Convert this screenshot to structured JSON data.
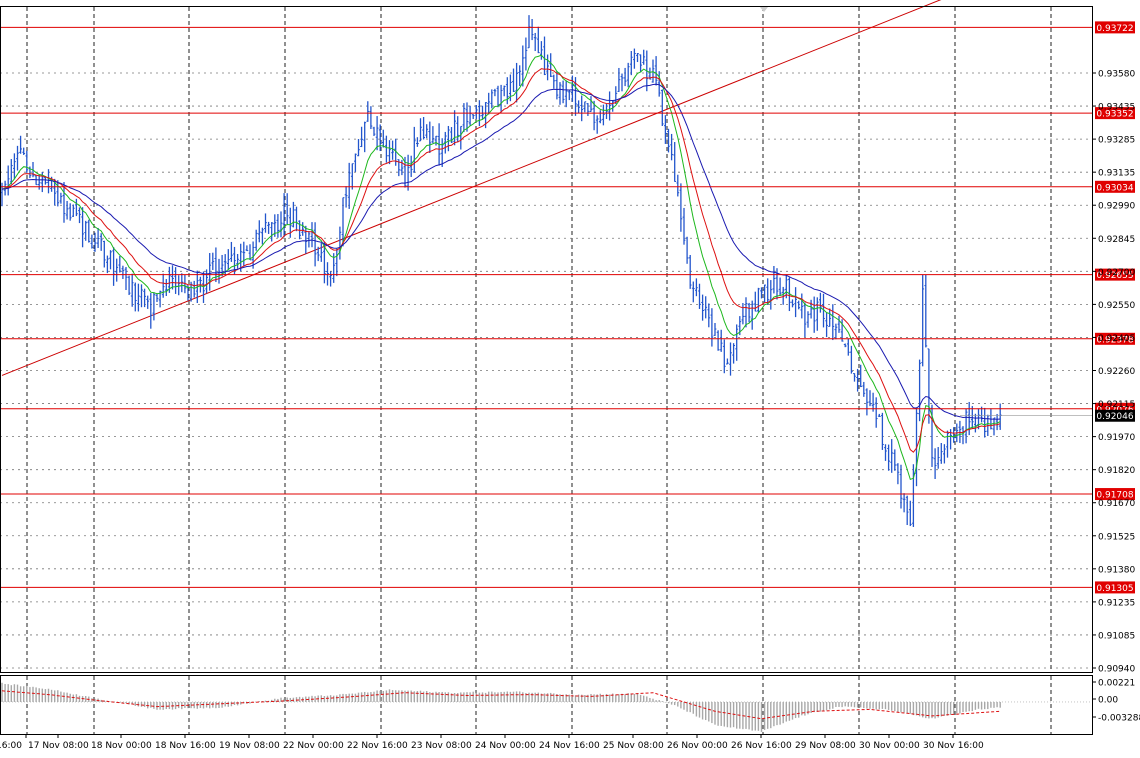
{
  "chart_data": [
    {
      "type": "candlestick",
      "price_range": [
        0.9094,
        0.9381
      ],
      "x_labels": [
        "16:00",
        "17 Nov 08:00",
        "18 Nov 00:00",
        "18 Nov 16:00",
        "19 Nov 08:00",
        "22 Nov 00:00",
        "22 Nov 16:00",
        "23 Nov 08:00",
        "24 Nov 00:00",
        "24 Nov 16:00",
        "25 Nov 08:00",
        "26 Nov 00:00",
        "26 Nov 16:00",
        "29 Nov 08:00",
        "30 Nov 00:00",
        "30 Nov 16:00"
      ],
      "y_ticks": [
        "0.93580",
        "0.93435",
        "0.93285",
        "0.93135",
        "0.92990",
        "0.92845",
        "0.92700",
        "0.92550",
        "0.92405",
        "0.92260",
        "0.92115",
        "0.91970",
        "0.91820",
        "0.91670",
        "0.91525",
        "0.91380",
        "0.91235",
        "0.91085",
        "0.90940"
      ],
      "levels": [
        "0.93722",
        "0.93352",
        "0.93034",
        "0.92655",
        "0.92378",
        "0.92076",
        "0.91708",
        "0.91305"
      ],
      "current_price": "0.92046",
      "trendline": {
        "start": {
          "bar": 0,
          "price": 0.9222
        },
        "end": {
          "bar": 310,
          "price": 0.9388
        }
      },
      "close_anchors": [
        [
          0,
          0.93
        ],
        [
          5,
          0.932
        ],
        [
          12,
          0.9305
        ],
        [
          20,
          0.9295
        ],
        [
          30,
          0.928
        ],
        [
          40,
          0.9262
        ],
        [
          48,
          0.9252
        ],
        [
          55,
          0.9262
        ],
        [
          62,
          0.9258
        ],
        [
          70,
          0.927
        ],
        [
          78,
          0.9272
        ],
        [
          85,
          0.9285
        ],
        [
          92,
          0.9292
        ],
        [
          100,
          0.928
        ],
        [
          106,
          0.9265
        ],
        [
          112,
          0.931
        ],
        [
          118,
          0.9332
        ],
        [
          125,
          0.9318
        ],
        [
          130,
          0.9305
        ],
        [
          135,
          0.9328
        ],
        [
          142,
          0.932
        ],
        [
          150,
          0.9335
        ],
        [
          158,
          0.934
        ],
        [
          165,
          0.9345
        ],
        [
          170,
          0.937
        ],
        [
          175,
          0.9355
        ],
        [
          180,
          0.9345
        ],
        [
          186,
          0.9342
        ],
        [
          192,
          0.9332
        ],
        [
          198,
          0.9345
        ],
        [
          204,
          0.936
        ],
        [
          210,
          0.935
        ],
        [
          214,
          0.933
        ],
        [
          218,
          0.93
        ],
        [
          222,
          0.9265
        ],
        [
          228,
          0.9245
        ],
        [
          234,
          0.9225
        ],
        [
          240,
          0.925
        ],
        [
          246,
          0.9258
        ],
        [
          252,
          0.9262
        ],
        [
          258,
          0.9248
        ],
        [
          264,
          0.925
        ],
        [
          270,
          0.9238
        ],
        [
          276,
          0.9222
        ],
        [
          282,
          0.9205
        ],
        [
          288,
          0.918
        ],
        [
          293,
          0.916
        ],
        [
          297,
          0.9255
        ],
        [
          300,
          0.9185
        ],
        [
          306,
          0.9195
        ],
        [
          312,
          0.9205
        ],
        [
          320,
          0.92
        ],
        [
          322,
          0.9204
        ]
      ],
      "indicator": {
        "type": "macd-histogram",
        "y_ticks": [
          "0.00221",
          "0.00",
          "-0.003288"
        ],
        "range": [
          -0.00345,
          0.0028
        ],
        "signal_anchors": [
          [
            0,
            0.0012
          ],
          [
            15,
            0.0008
          ],
          [
            30,
            0.0002
          ],
          [
            50,
            -0.0005
          ],
          [
            70,
            -0.0002
          ],
          [
            90,
            0.0001
          ],
          [
            110,
            0.0005
          ],
          [
            130,
            0.001
          ],
          [
            150,
            0.0007
          ],
          [
            170,
            0.0008
          ],
          [
            190,
            0.0006
          ],
          [
            210,
            0.001
          ],
          [
            230,
            -0.001
          ],
          [
            245,
            -0.0018
          ],
          [
            262,
            -0.001
          ],
          [
            280,
            -0.0008
          ],
          [
            300,
            -0.0015
          ],
          [
            322,
            -0.001
          ]
        ],
        "histogram_anchors": [
          [
            0,
            0.002
          ],
          [
            15,
            0.0014
          ],
          [
            30,
            0.0004
          ],
          [
            50,
            -0.0008
          ],
          [
            70,
            -0.0006
          ],
          [
            90,
            0.0004
          ],
          [
            110,
            0.0008
          ],
          [
            125,
            0.0013
          ],
          [
            145,
            0.001
          ],
          [
            165,
            0.0011
          ],
          [
            185,
            0.0008
          ],
          [
            205,
            0.0009
          ],
          [
            218,
            -0.0005
          ],
          [
            230,
            -0.0025
          ],
          [
            245,
            -0.0032
          ],
          [
            258,
            -0.0015
          ],
          [
            270,
            -0.0005
          ],
          [
            285,
            -0.0008
          ],
          [
            300,
            -0.0018
          ],
          [
            315,
            -0.0008
          ],
          [
            322,
            -0.0006
          ]
        ]
      }
    }
  ]
}
